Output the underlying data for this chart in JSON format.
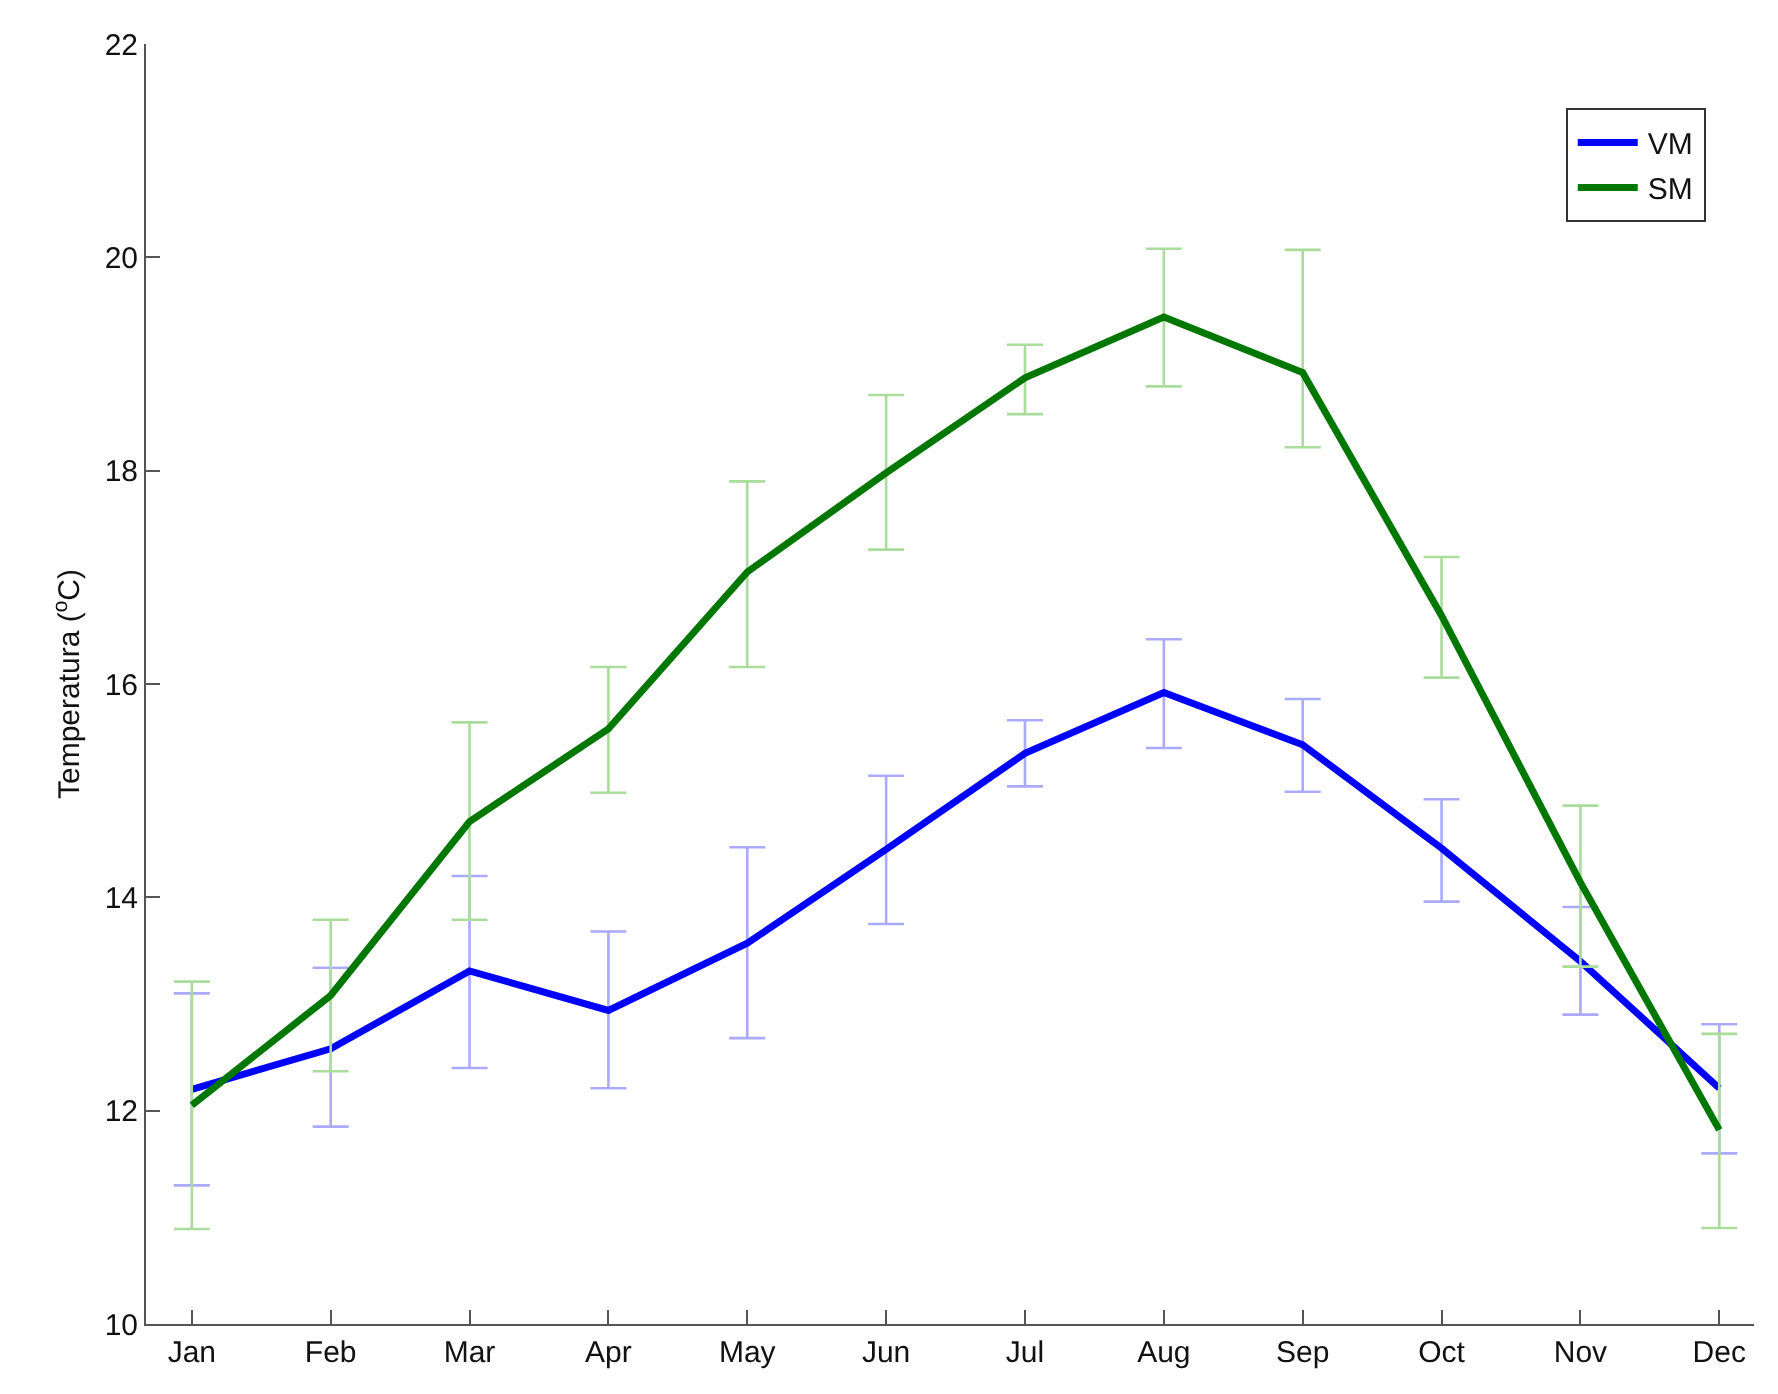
{
  "chart_data": {
    "type": "line",
    "ylabel": "Temperatura ($^{o}$C)",
    "categories": [
      "Jan",
      "Feb",
      "Mar",
      "Apr",
      "May",
      "Jun",
      "Jul",
      "Aug",
      "Sep",
      "Oct",
      "Nov",
      "Dec"
    ],
    "series": [
      {
        "name": "VM",
        "color": "#0000ff",
        "values": [
          12.2,
          12.58,
          13.31,
          12.94,
          13.57,
          14.45,
          15.35,
          15.92,
          15.43,
          14.46,
          13.4,
          12.21
        ],
        "errors": [
          [
            11.3,
            13.1
          ],
          [
            11.85,
            13.34
          ],
          [
            12.4,
            14.2
          ],
          [
            12.21,
            13.68
          ],
          [
            12.68,
            14.47
          ],
          [
            13.75,
            15.14
          ],
          [
            15.04,
            15.66
          ],
          [
            15.4,
            16.42
          ],
          [
            14.99,
            15.86
          ],
          [
            13.96,
            14.92
          ],
          [
            12.9,
            13.91
          ],
          [
            11.6,
            12.81
          ]
        ]
      },
      {
        "name": "SM",
        "color": "#007700",
        "values": [
          12.05,
          13.08,
          14.71,
          15.58,
          17.05,
          17.98,
          18.87,
          19.44,
          18.92,
          16.64,
          14.14,
          11.82
        ],
        "errors": [
          [
            10.89,
            13.21
          ],
          [
            12.37,
            13.79
          ],
          [
            13.79,
            15.64
          ],
          [
            14.98,
            16.16
          ],
          [
            16.16,
            17.9
          ],
          [
            17.26,
            18.71
          ],
          [
            18.53,
            19.18
          ],
          [
            18.79,
            20.08
          ],
          [
            18.22,
            20.07
          ],
          [
            16.06,
            17.19
          ],
          [
            13.35,
            14.86
          ],
          [
            10.9,
            12.72
          ]
        ]
      }
    ],
    "ylim": [
      10,
      22
    ],
    "yticks": [
      10,
      12,
      14,
      16,
      18,
      20,
      22
    ],
    "legend": "top right",
    "marker": "none",
    "line_style": "solid"
  }
}
